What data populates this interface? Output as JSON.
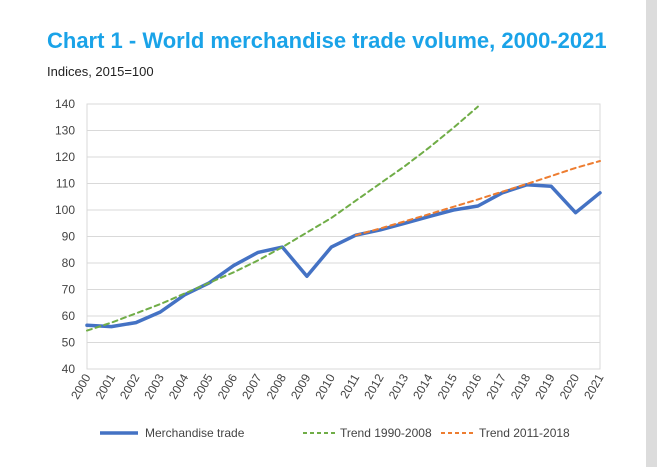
{
  "header": {
    "title": "Chart 1 - World merchandise trade volume, 2000-2021",
    "subtitle": "Indices, 2015=100"
  },
  "colors": {
    "title": "#1aa3e8",
    "merchandise": "#4472c4",
    "trend_1990_2008": "#70ad47",
    "trend_2011_2018": "#ed7d31",
    "grid": "#d9d9d9",
    "gutter": "#dcdcdc"
  },
  "chart_data": {
    "type": "line",
    "title": "Chart 1 - World merchandise trade volume, 2000-2021",
    "subtitle": "Indices, 2015=100",
    "categories": [
      "2000",
      "2001",
      "2002",
      "2003",
      "2004",
      "2005",
      "2006",
      "2007",
      "2008",
      "2009",
      "2010",
      "2011",
      "2012",
      "2013",
      "2014",
      "2015",
      "2016",
      "2017",
      "2018",
      "2019",
      "2020",
      "2021"
    ],
    "ylim": [
      40,
      140
    ],
    "yticks": [
      40,
      50,
      60,
      70,
      80,
      90,
      100,
      110,
      120,
      130,
      140
    ],
    "grid": true,
    "legend_position": "bottom",
    "series": [
      {
        "name": "Merchandise trade",
        "style": "solid",
        "values": [
          56.5,
          56,
          57.5,
          61.5,
          68,
          72.5,
          79,
          84,
          86,
          75,
          86,
          90.5,
          92.5,
          95,
          97.5,
          100,
          101.5,
          106.5,
          109.5,
          109,
          99,
          106.5
        ]
      },
      {
        "name": "Trend 1990-2008",
        "style": "dashed",
        "values": [
          54.5,
          57.5,
          61,
          64.5,
          68.5,
          72.5,
          76.5,
          81,
          86,
          91.5,
          97,
          103.5,
          110,
          116.5,
          123.5,
          131,
          139,
          null,
          null,
          null,
          null,
          null
        ]
      },
      {
        "name": "Trend 2011-2018",
        "style": "dashed",
        "values": [
          null,
          null,
          null,
          null,
          null,
          null,
          null,
          null,
          null,
          null,
          null,
          90.5,
          93,
          95.7,
          98.4,
          101.2,
          104,
          106.9,
          109.8,
          112.8,
          115.9,
          118.5
        ]
      }
    ]
  }
}
